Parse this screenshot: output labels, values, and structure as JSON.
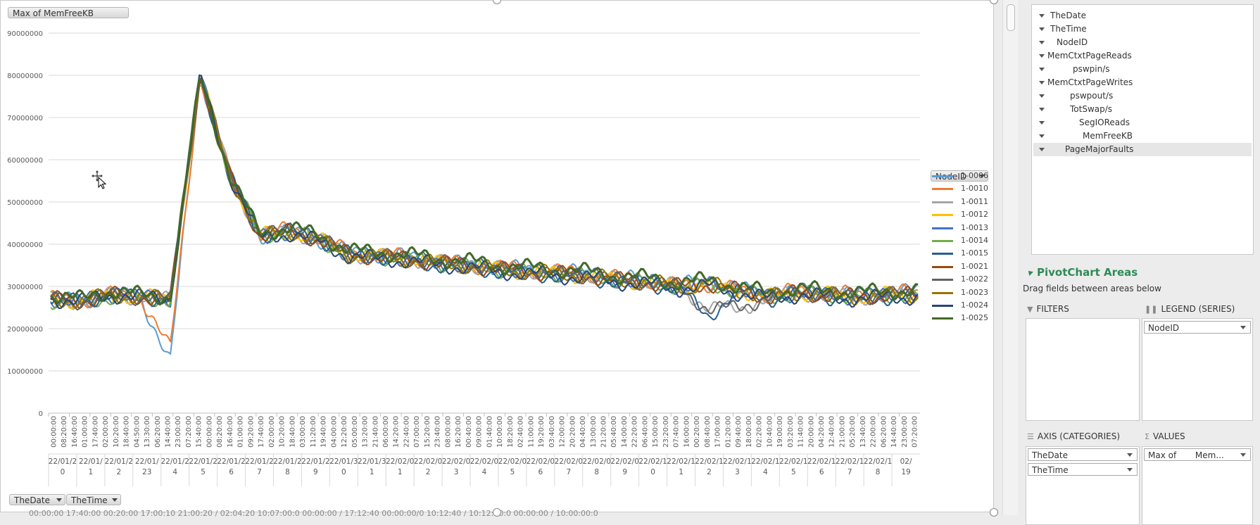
{
  "chart_button_value": "Max of MemFreeKB",
  "axis_buttons": [
    "TheDate",
    "TheTime"
  ],
  "legend_button": "NodeID",
  "chart_data": {
    "type": "line",
    "ylabel": "",
    "xlabel": "",
    "ylim": [
      0,
      90000000
    ],
    "y_ticks": [
      "0",
      "10000000",
      "20000000",
      "30000000",
      "40000000",
      "50000000",
      "60000000",
      "70000000",
      "80000000",
      "90000000"
    ],
    "time_ticks": [
      "00:00:00",
      "08:20:00",
      "16:40:00",
      "01:00:00",
      "17:40:00",
      "02:00:00",
      "10:20:00",
      "18:40:00",
      "04:50:00",
      "13:30:00",
      "06:20:00",
      "14:40:00",
      "23:00:00",
      "07:20:00",
      "15:40:00",
      "00:00:00",
      "08:20:00",
      "16:40:00",
      "01:00:00",
      "09:20:00",
      "17:40:00",
      "02:00:00",
      "10:20:00",
      "18:40:00",
      "03:00:00",
      "11:20:00",
      "19:40:00",
      "04:00:00",
      "12:20:00",
      "05:00:00",
      "13:20:00",
      "21:40:00",
      "06:00:00",
      "14:20:00",
      "22:40:00",
      "07:00:00",
      "15:20:00",
      "23:40:00",
      "08:00:00",
      "16:20:00",
      "00:40:00",
      "09:00:00",
      "01:40:00",
      "10:00:00",
      "18:20:00",
      "02:40:00",
      "11:00:00",
      "19:20:00",
      "03:40:00",
      "12:00:00",
      "20:20:00",
      "04:40:00",
      "13:00:00",
      "21:20:00",
      "05:40:00",
      "14:00:00",
      "22:20:00",
      "06:40:00",
      "15:00:00",
      "23:20:00",
      "07:40:00",
      "16:00:00",
      "00:20:00",
      "08:40:00",
      "17:00:00",
      "01:20:00",
      "09:40:00",
      "18:00:00",
      "02:20:00",
      "10:40:00",
      "19:00:00",
      "03:20:00",
      "11:40:00",
      "20:00:00",
      "04:20:00",
      "12:40:00",
      "21:00:00",
      "05:20:00",
      "13:40:00",
      "22:00:00",
      "06:20:00",
      "14:40:00",
      "23:00:00",
      "07:20:00"
    ],
    "date_labels": [
      {
        "line1": "22/01/2",
        "line2": "0"
      },
      {
        "line1": "22/01/",
        "line2": "1"
      },
      {
        "line1": "22/01/2",
        "line2": "2"
      },
      {
        "line1": "22/01/",
        "line2": "23"
      },
      {
        "line1": "22/01/2",
        "line2": "4"
      },
      {
        "line1": "22/01/2",
        "line2": "5"
      },
      {
        "line1": "22/01/2",
        "line2": "6"
      },
      {
        "line1": "22/01/2",
        "line2": "7"
      },
      {
        "line1": "22/01/2",
        "line2": "8"
      },
      {
        "line1": "22/01/2",
        "line2": "9"
      },
      {
        "line1": "22/01/3",
        "line2": "0"
      },
      {
        "line1": "22/01/3",
        "line2": "1"
      },
      {
        "line1": "22/02/0",
        "line2": "1"
      },
      {
        "line1": "22/02/0",
        "line2": "2"
      },
      {
        "line1": "22/02/0",
        "line2": "3"
      },
      {
        "line1": "22/02/0",
        "line2": "4"
      },
      {
        "line1": "22/02/0",
        "line2": "5"
      },
      {
        "line1": "22/02/0",
        "line2": "6"
      },
      {
        "line1": "22/02/0",
        "line2": "7"
      },
      {
        "line1": "22/02/0",
        "line2": "8"
      },
      {
        "line1": "22/02/0",
        "line2": "9"
      },
      {
        "line1": "22/02/1",
        "line2": "0"
      },
      {
        "line1": "22/02/1",
        "line2": "1"
      },
      {
        "line1": "22/02/1",
        "line2": "2"
      },
      {
        "line1": "22/02/1",
        "line2": "3"
      },
      {
        "line1": "22/02/1",
        "line2": "4"
      },
      {
        "line1": "22/02/1",
        "line2": "5"
      },
      {
        "line1": "22/02/1",
        "line2": "6"
      },
      {
        "line1": "22/02/1",
        "line2": "7"
      },
      {
        "line1": "22/02/1",
        "line2": "8"
      },
      {
        "line1": "02/",
        "line2": "19"
      }
    ],
    "grid": true,
    "legend_position": "right",
    "series": [
      {
        "name": "1-0006",
        "color": "#5b9bd5",
        "values": [
          27000000,
          26500000,
          28000000,
          27500000,
          12000000,
          80000000,
          56000000,
          42000000,
          43000000,
          41000000,
          38000000,
          37500000,
          37000000,
          36000000,
          35000000,
          34500000,
          34000000,
          33500000,
          33000000,
          32000000,
          31500000,
          30500000,
          31000000,
          29500000,
          28000000,
          29000000,
          28500000,
          28000000,
          28500000,
          29000000
        ]
      },
      {
        "name": "1-0010",
        "color": "#ed7d31",
        "values": [
          27000000,
          26500000,
          28000000,
          27500000,
          15000000,
          80000000,
          56000000,
          42500000,
          43500000,
          41500000,
          38000000,
          37500000,
          37000000,
          36000000,
          35000000,
          34500000,
          34000000,
          33500000,
          33000000,
          32000000,
          31500000,
          30000000,
          30500000,
          29000000,
          28000000,
          29000000,
          28500000,
          28000000,
          28500000,
          28500000
        ]
      },
      {
        "name": "1-0011",
        "color": "#a5a5a5",
        "values": [
          27000000,
          26500000,
          28000000,
          27500000,
          27000000,
          80000000,
          56000000,
          42000000,
          43000000,
          41000000,
          37500000,
          37000000,
          36500000,
          35500000,
          35000000,
          34000000,
          33500000,
          33000000,
          32500000,
          31500000,
          31000000,
          30000000,
          25000000,
          24500000,
          27500000,
          28500000,
          28000000,
          27500000,
          28000000,
          28000000
        ]
      },
      {
        "name": "1-0012",
        "color": "#ffc000",
        "values": [
          27000000,
          26500000,
          28000000,
          27500000,
          27000000,
          80000000,
          56000000,
          42000000,
          43000000,
          41000000,
          37500000,
          37000000,
          36500000,
          35500000,
          35000000,
          34000000,
          33500000,
          33000000,
          32500000,
          31500000,
          31000000,
          30000000,
          30500000,
          29000000,
          27500000,
          28500000,
          28000000,
          27500000,
          28000000,
          28000000
        ]
      },
      {
        "name": "1-0013",
        "color": "#4472c4",
        "values": [
          27000000,
          26500000,
          28000000,
          27500000,
          27000000,
          80000000,
          56000000,
          42000000,
          43000000,
          41000000,
          37500000,
          37000000,
          36500000,
          35500000,
          35000000,
          34000000,
          33500000,
          33000000,
          32500000,
          31500000,
          31000000,
          30000000,
          30500000,
          29000000,
          27500000,
          28500000,
          28000000,
          27500000,
          28000000,
          28000000
        ]
      },
      {
        "name": "1-0014",
        "color": "#70ad47",
        "values": [
          26500000,
          26000000,
          27500000,
          27000000,
          27000000,
          80000000,
          56000000,
          42000000,
          43000000,
          41000000,
          37500000,
          37000000,
          36500000,
          35500000,
          35000000,
          34000000,
          33500000,
          33000000,
          32500000,
          31500000,
          31000000,
          30000000,
          30500000,
          29000000,
          27500000,
          28500000,
          28000000,
          27500000,
          28000000,
          28000000
        ]
      },
      {
        "name": "1-0015",
        "color": "#255e91",
        "values": [
          27000000,
          26500000,
          28000000,
          27500000,
          27000000,
          80000000,
          56000000,
          42000000,
          43000000,
          41000000,
          37500000,
          37000000,
          36000000,
          35000000,
          34500000,
          33500000,
          33000000,
          32500000,
          32000000,
          31000000,
          30500000,
          29500000,
          23000000,
          29000000,
          27000000,
          28000000,
          27500000,
          27000000,
          27500000,
          27500000
        ]
      },
      {
        "name": "1-0021",
        "color": "#9e480e",
        "values": [
          27000000,
          26500000,
          28000000,
          27500000,
          27000000,
          80000000,
          56000000,
          42000000,
          43000000,
          41000000,
          37500000,
          37000000,
          36500000,
          35500000,
          35000000,
          34000000,
          33500000,
          33000000,
          32500000,
          31500000,
          31000000,
          30000000,
          30500000,
          29000000,
          27500000,
          28500000,
          28000000,
          27500000,
          28000000,
          28000000
        ]
      },
      {
        "name": "1-0022",
        "color": "#636363",
        "values": [
          27000000,
          26500000,
          28000000,
          27500000,
          27000000,
          80000000,
          56000000,
          42000000,
          43000000,
          41000000,
          37500000,
          37000000,
          36500000,
          35500000,
          35000000,
          34000000,
          33500000,
          33000000,
          32500000,
          31500000,
          31000000,
          30000000,
          24500000,
          25000000,
          27500000,
          28500000,
          28000000,
          27500000,
          28000000,
          28000000
        ]
      },
      {
        "name": "1-0023",
        "color": "#997300",
        "values": [
          27000000,
          26500000,
          28000000,
          27500000,
          27000000,
          80000000,
          56000000,
          42000000,
          43000000,
          41000000,
          37500000,
          37000000,
          36500000,
          35500000,
          35000000,
          34000000,
          33500000,
          33000000,
          32500000,
          31500000,
          31000000,
          30000000,
          30500000,
          29000000,
          27500000,
          28500000,
          28000000,
          27500000,
          28000000,
          28000000
        ]
      },
      {
        "name": "1-0024",
        "color": "#264478",
        "values": [
          27000000,
          26500000,
          28000000,
          27500000,
          27000000,
          80000000,
          56000000,
          41500000,
          42500000,
          40500000,
          37000000,
          36500000,
          36000000,
          35000000,
          34500000,
          33500000,
          33000000,
          32500000,
          32000000,
          31000000,
          30500000,
          29500000,
          30000000,
          28500000,
          27000000,
          28000000,
          27500000,
          27000000,
          27500000,
          27500000
        ]
      },
      {
        "name": "1-0025",
        "color": "#43682b",
        "values": [
          28000000,
          27000000,
          29000000,
          28000000,
          27500000,
          80000000,
          56000000,
          42500000,
          44000000,
          42000000,
          38500000,
          38000000,
          37500000,
          36500000,
          36000000,
          35000000,
          34500000,
          34000000,
          33500000,
          32500000,
          32000000,
          31000000,
          31500000,
          30000000,
          28500000,
          29500000,
          29000000,
          28500000,
          29000000,
          29000000
        ]
      }
    ]
  },
  "field_list": [
    "TheDate",
    "TheTime",
    "NodeID",
    "MemCtxtPageReads",
    "pswpin/s",
    "MemCtxtPageWrites",
    "pswpout/s",
    "TotSwap/s",
    "SegIOReads",
    "MemFreeKB",
    "PageMajorFaults"
  ],
  "areas": {
    "title": "PivotChart Areas",
    "subtitle": "Drag fields between areas below",
    "filters_label": "FILTERS",
    "legend_label": "LEGEND (SERIES)",
    "axis_label": "AXIS (CATEGORIES)",
    "values_label": "VALUES",
    "legend_field": "NodeID",
    "axis_fields": [
      "TheDate",
      "TheTime"
    ],
    "values_field": "Max of       Mem..."
  },
  "bottom_ghost_text": "00:00:00      17:40:00      00:20:00      17:00:10      21:00:20 /      02:04:20      10:07:00:0      00:00:00 /      17:12:40      00:00:00/0      10:12:40 /      10:12:00:0      00:00:00 /      10:00:00:0"
}
